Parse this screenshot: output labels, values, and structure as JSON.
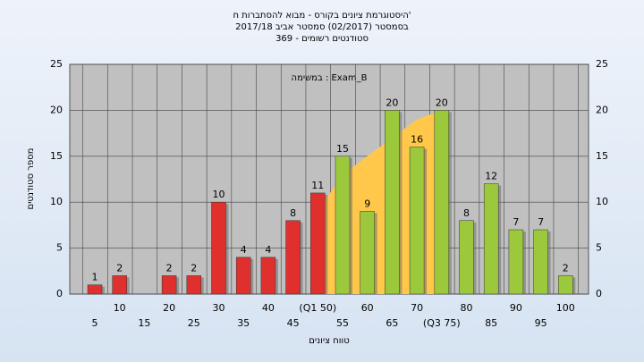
{
  "chart_data": {
    "type": "bar",
    "title_lines": [
      "'היסטוגרמת ציונים בקורס - מבוא להסתברות ח",
      "בסמסטר  (02/2017)  סמסטר אביב 2017/18",
      "סטודנטים רשומים - 369"
    ],
    "annotation": "במשימה : Exam_B",
    "x_label": "טווח ציונים",
    "y_label": "מספר סטודנטים",
    "categories": [
      "5",
      "10",
      "15",
      "20",
      "25",
      "30",
      "35",
      "40",
      "45",
      "(Q1 50)",
      "55",
      "60",
      "65",
      "70",
      "(Q3 75)",
      "80",
      "85",
      "90",
      "95",
      "100"
    ],
    "values": [
      1,
      2,
      null,
      2,
      2,
      10,
      4,
      4,
      8,
      11,
      15,
      9,
      20,
      16,
      20,
      8,
      12,
      7,
      7,
      2
    ],
    "colors": [
      "#e0302e",
      "#e0302e",
      "#e0302e",
      "#e0302e",
      "#e0302e",
      "#e0302e",
      "#e0302e",
      "#e0302e",
      "#e0302e",
      "#e0302e",
      "#9cc83c",
      "#9cc83c",
      "#9cc83c",
      "#9cc83c",
      "#9cc83c",
      "#9cc83c",
      "#9cc83c",
      "#9cc83c",
      "#9cc83c",
      "#9cc83c"
    ],
    "area_values": [
      null,
      null,
      null,
      null,
      null,
      null,
      null,
      null,
      null,
      9,
      13,
      15,
      17,
      19,
      20,
      null,
      null,
      null,
      null,
      null
    ],
    "area_color": "#ffc84a",
    "ylim": [
      0,
      25
    ],
    "yticks": [
      0,
      5,
      10,
      15,
      20,
      25
    ],
    "grid": true
  }
}
